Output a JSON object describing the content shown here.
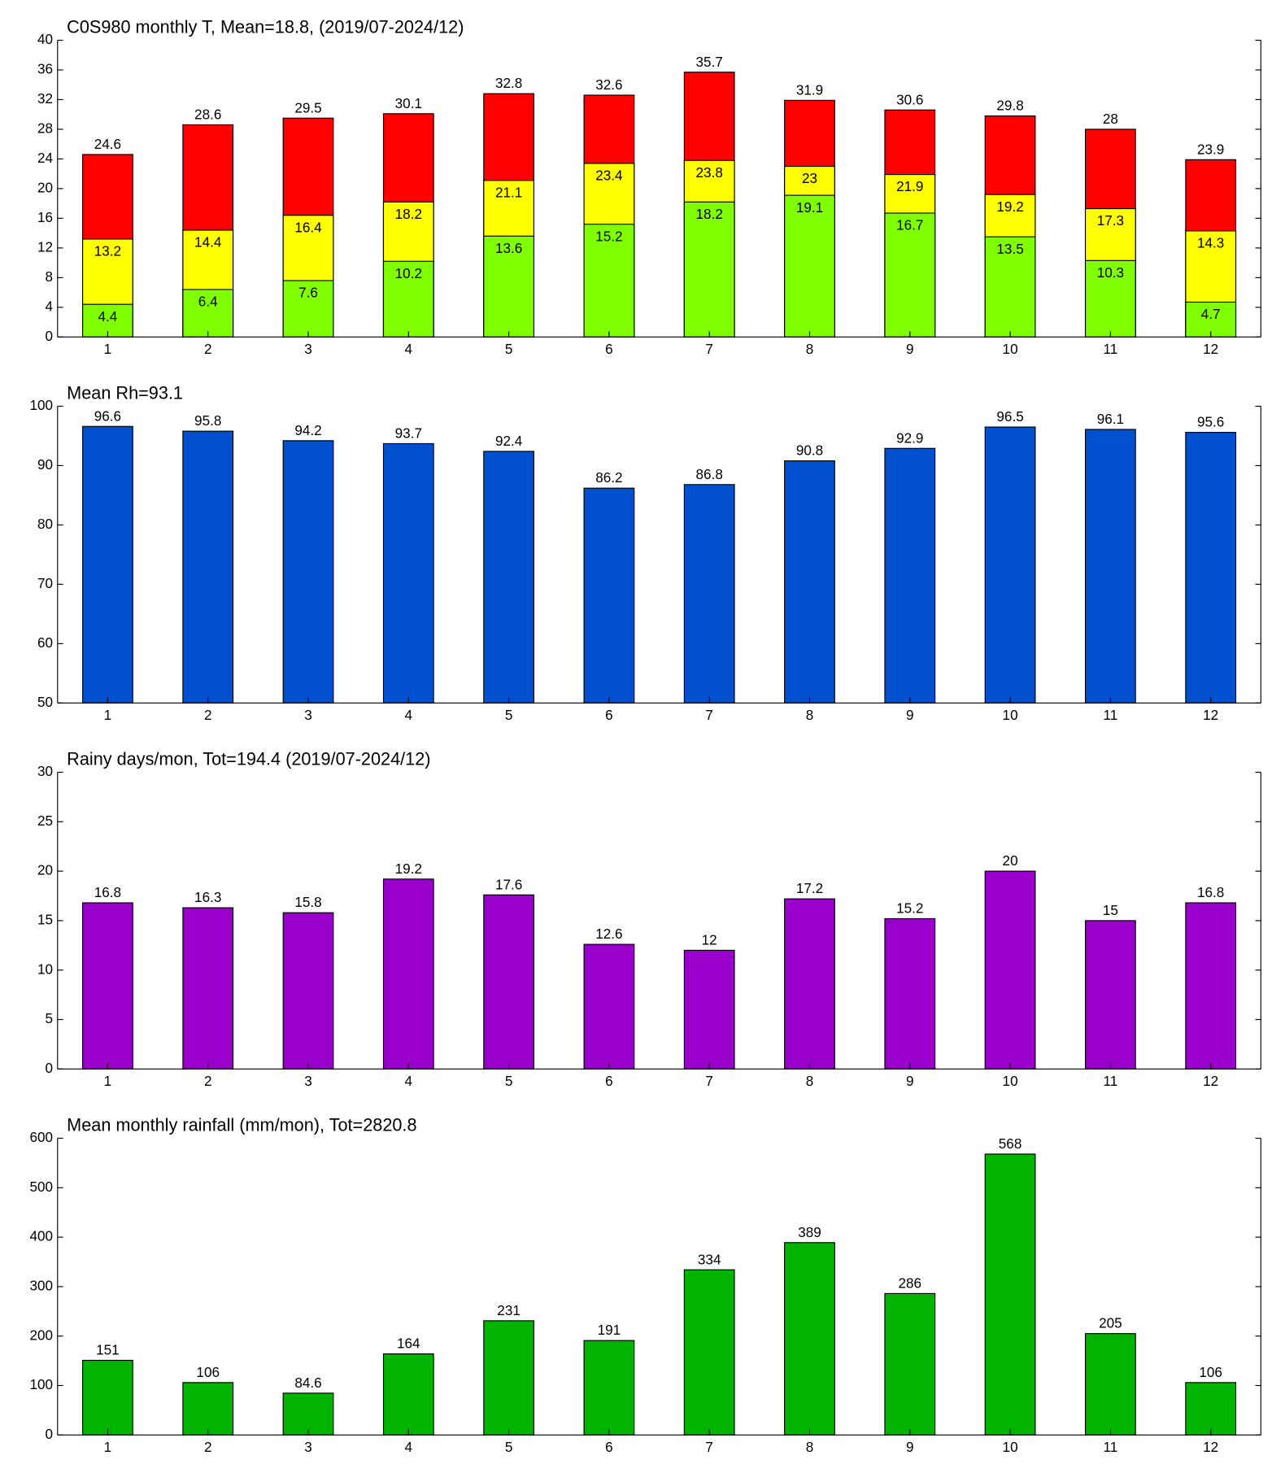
{
  "chart_data": [
    {
      "type": "bar",
      "title": "C0S980 monthly T, Mean=18.8, (2019/07-2024/12)",
      "categories": [
        "1",
        "2",
        "3",
        "4",
        "5",
        "6",
        "7",
        "8",
        "9",
        "10",
        "11",
        "12"
      ],
      "series": [
        {
          "color": "#80ff00",
          "values": [
            4.4,
            6.4,
            7.6,
            10.2,
            13.6,
            15.2,
            18.2,
            19.1,
            16.7,
            13.5,
            10.3,
            4.7
          ]
        },
        {
          "color": "#ffff00",
          "values": [
            13.2,
            14.4,
            16.4,
            18.2,
            21.1,
            23.4,
            23.8,
            23,
            21.9,
            19.2,
            17.3,
            14.3
          ]
        },
        {
          "color": "#ff0000",
          "values": [
            24.6,
            28.6,
            29.5,
            30.1,
            32.8,
            32.6,
            35.7,
            31.9,
            30.6,
            29.8,
            28,
            23.9
          ]
        }
      ],
      "ylim": [
        0,
        40
      ],
      "yticks": [
        0,
        4,
        8,
        12,
        16,
        20,
        24,
        28,
        32,
        36,
        40
      ]
    },
    {
      "type": "bar",
      "title": "Mean Rh=93.1",
      "categories": [
        "1",
        "2",
        "3",
        "4",
        "5",
        "6",
        "7",
        "8",
        "9",
        "10",
        "11",
        "12"
      ],
      "series": [
        {
          "color": "#0050d0",
          "values": [
            96.6,
            95.8,
            94.2,
            93.7,
            92.4,
            86.2,
            86.8,
            90.8,
            92.9,
            96.5,
            96.1,
            95.6
          ]
        }
      ],
      "ylim": [
        50,
        100
      ],
      "yticks": [
        50,
        60,
        70,
        80,
        90,
        100
      ]
    },
    {
      "type": "bar",
      "title": "Rainy days/mon, Tot=194.4 (2019/07-2024/12)",
      "categories": [
        "1",
        "2",
        "3",
        "4",
        "5",
        "6",
        "7",
        "8",
        "9",
        "10",
        "11",
        "12"
      ],
      "series": [
        {
          "color": "#9900cc",
          "values": [
            16.8,
            16.3,
            15.8,
            19.2,
            17.6,
            12.6,
            12,
            17.2,
            15.2,
            20,
            15,
            16.8
          ]
        }
      ],
      "ylim": [
        0,
        30
      ],
      "yticks": [
        0,
        5,
        10,
        15,
        20,
        25,
        30
      ]
    },
    {
      "type": "bar",
      "title": "Mean monthly rainfall (mm/mon), Tot=2820.8",
      "categories": [
        "1",
        "2",
        "3",
        "4",
        "5",
        "6",
        "7",
        "8",
        "9",
        "10",
        "11",
        "12"
      ],
      "series": [
        {
          "color": "#00b400",
          "values": [
            151,
            106,
            84.6,
            164,
            231,
            191,
            334,
            389,
            286,
            568,
            205,
            106
          ]
        }
      ],
      "ylim": [
        0,
        600
      ],
      "yticks": [
        0,
        100,
        200,
        300,
        400,
        500,
        600
      ]
    }
  ]
}
